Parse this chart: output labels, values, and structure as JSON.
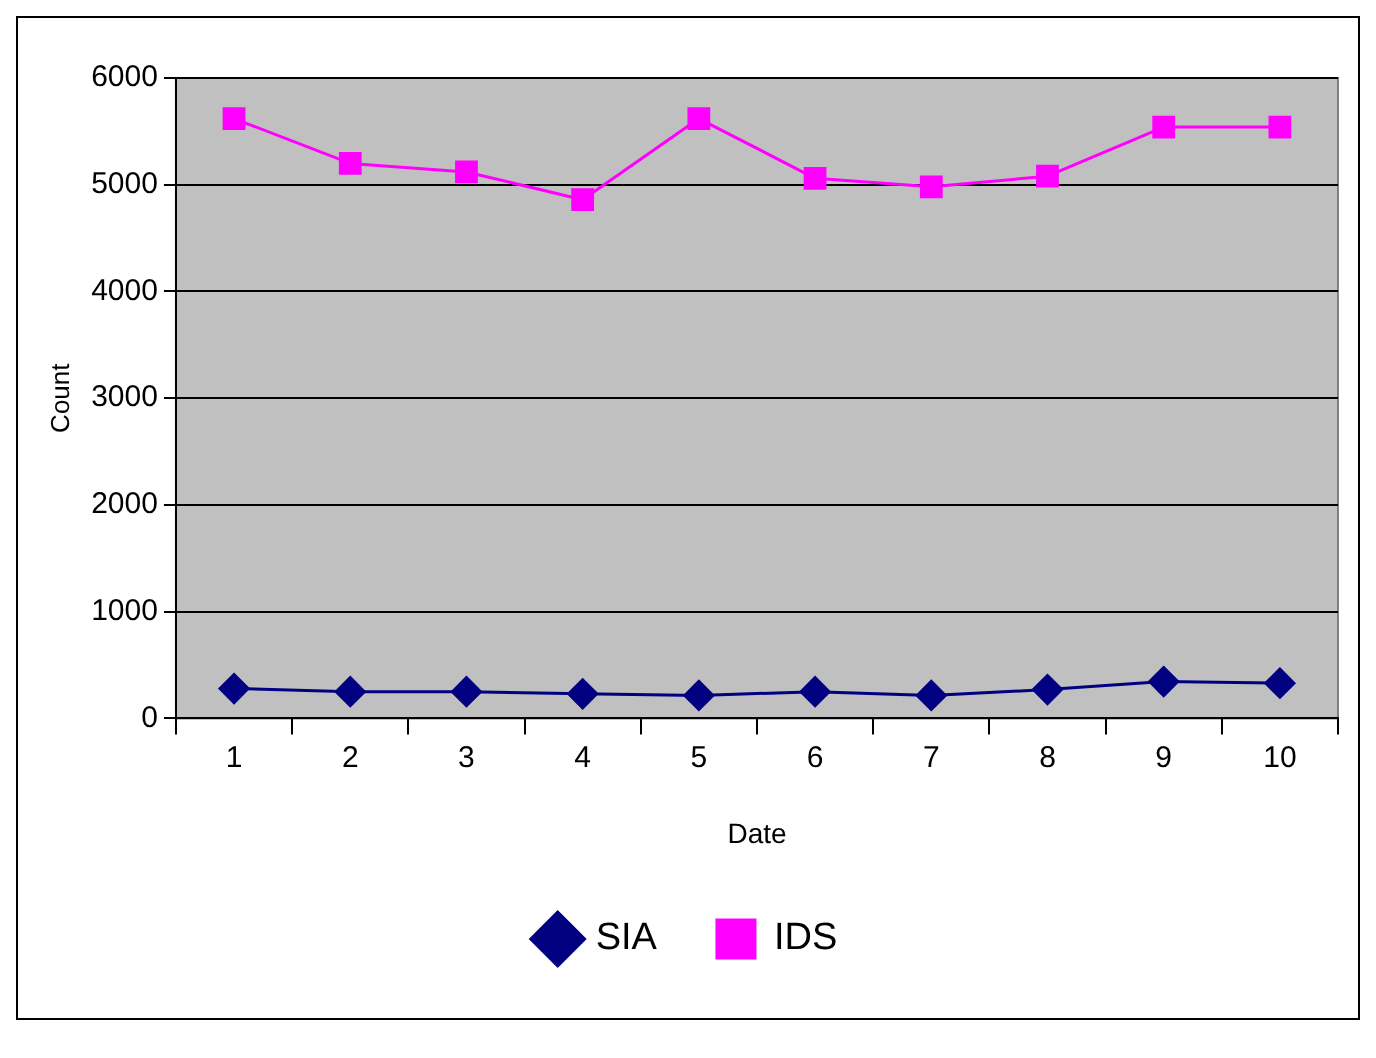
{
  "chart_data": {
    "type": "line",
    "xlabel": "Date",
    "ylabel": "Count",
    "categories": [
      "1",
      "2",
      "3",
      "4",
      "5",
      "6",
      "7",
      "8",
      "9",
      "10"
    ],
    "series": [
      {
        "name": "SIA",
        "color": "#000080",
        "marker": "diamond",
        "values": [
          280,
          250,
          250,
          230,
          215,
          250,
          215,
          270,
          345,
          330
        ]
      },
      {
        "name": "IDS",
        "color": "#ff00ff",
        "marker": "square",
        "values": [
          5620,
          5200,
          5120,
          4860,
          5620,
          5060,
          4980,
          5080,
          5540,
          5540
        ]
      }
    ],
    "ylim": [
      0,
      6000
    ],
    "yticks": [
      0,
      1000,
      2000,
      3000,
      4000,
      5000,
      6000
    ],
    "grid": "y",
    "legend": "bottom"
  }
}
